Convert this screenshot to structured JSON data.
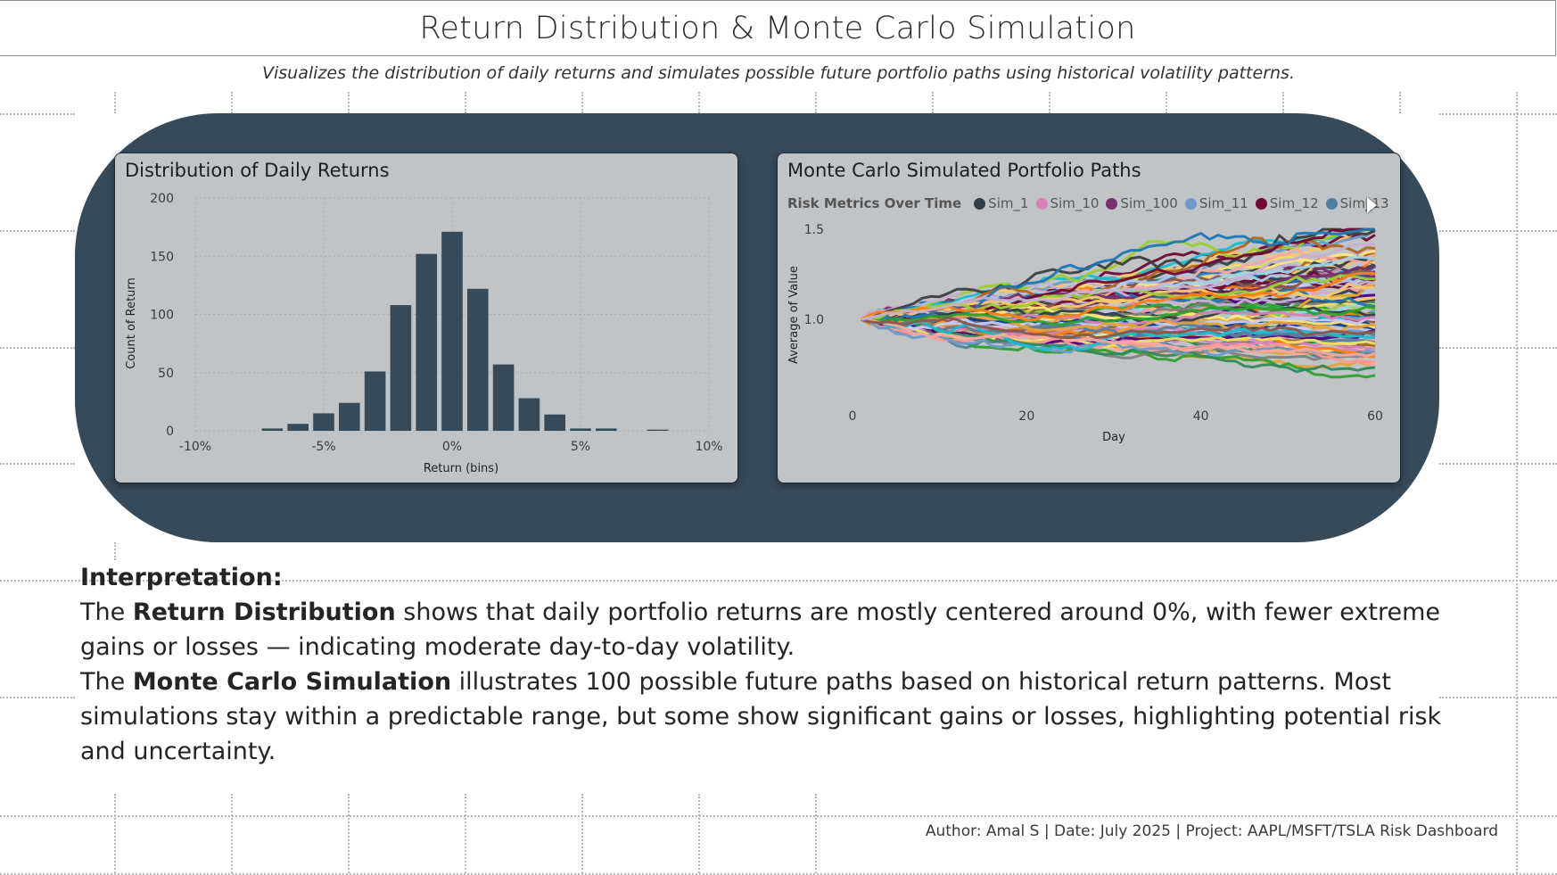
{
  "header": {
    "title": "Return Distribution & Monte Carlo Simulation",
    "subtitle": "Visualizes the distribution of daily returns and simulates possible future portfolio paths using historical volatility patterns."
  },
  "colors": {
    "panel_dark": "#374a5a",
    "card_bg": "#c0c4c6",
    "bar_color": "#374a5a"
  },
  "histogram_card": {
    "title": "Distribution of Daily Returns"
  },
  "montecarlo_card": {
    "title": "Monte Carlo Simulated Portfolio Paths",
    "legend_title": "Risk Metrics Over Time",
    "legend_items": [
      {
        "label": "Sim_1",
        "color": "#2f3f4c"
      },
      {
        "label": "Sim_10",
        "color": "#d782b4"
      },
      {
        "label": "Sim_100",
        "color": "#75306f"
      },
      {
        "label": "Sim_11",
        "color": "#6d9ac8"
      },
      {
        "label": "Sim_12",
        "color": "#6f0a35"
      },
      {
        "label": "Sim_13",
        "color": "#547e9e"
      }
    ],
    "legend_next_icon": "chevron-right-icon"
  },
  "chart_data": [
    {
      "type": "bar",
      "title": "Distribution of Daily Returns",
      "xlabel": "Return (bins)",
      "ylabel": "Count of Return",
      "ylim": [
        0,
        200
      ],
      "yticks": [
        0,
        50,
        100,
        150,
        200
      ],
      "xlim": [
        -0.1,
        0.1
      ],
      "xticks": [
        {
          "v": -0.1,
          "label": "-10%"
        },
        {
          "v": -0.05,
          "label": "-5%"
        },
        {
          "v": 0,
          "label": "0%"
        },
        {
          "v": 0.05,
          "label": "5%"
        },
        {
          "v": 0.1,
          "label": "10%"
        }
      ],
      "bin_width": 0.01,
      "grid": true,
      "bins": [
        {
          "x": -0.07,
          "value": 2
        },
        {
          "x": -0.06,
          "value": 6
        },
        {
          "x": -0.05,
          "value": 15
        },
        {
          "x": -0.04,
          "value": 24
        },
        {
          "x": -0.03,
          "value": 51
        },
        {
          "x": -0.02,
          "value": 108
        },
        {
          "x": -0.01,
          "value": 152
        },
        {
          "x": 0.0,
          "value": 171
        },
        {
          "x": 0.01,
          "value": 122
        },
        {
          "x": 0.02,
          "value": 57
        },
        {
          "x": 0.03,
          "value": 28
        },
        {
          "x": 0.04,
          "value": 14
        },
        {
          "x": 0.05,
          "value": 2
        },
        {
          "x": 0.06,
          "value": 2
        },
        {
          "x": 0.08,
          "value": 1
        }
      ]
    },
    {
      "type": "line",
      "title": "Monte Carlo Simulated Portfolio Paths",
      "xlabel": "Day",
      "ylabel": "Average of Value",
      "xlim": [
        0,
        60
      ],
      "xticks": [
        0,
        20,
        40,
        60
      ],
      "ylim": [
        0.6,
        1.55
      ],
      "yticks": [
        {
          "v": 1.0,
          "label": "1.0"
        },
        {
          "v": 1.5,
          "label": "1.5"
        }
      ],
      "series_count": 100,
      "start_value": 1.0,
      "end_range": [
        0.75,
        1.5
      ],
      "legend_position": "top",
      "series_palette": [
        "#2f3f4c",
        "#d782b4",
        "#75306f",
        "#6d9ac8",
        "#6f0a35",
        "#547e9e",
        "#e6a23c",
        "#f7c86a",
        "#1f77b4",
        "#17becf",
        "#2ca02c",
        "#9acd32",
        "#ff7f0e",
        "#fba7a0",
        "#8c564b",
        "#c5b0d5",
        "#7f7f7f",
        "#4b0082",
        "#0b3d91",
        "#f2e15c",
        "#ffe87a",
        "#9bd3e8",
        "#aec7e8",
        "#3f3f3f",
        "#ff9896",
        "#2e8b57",
        "#b5651d",
        "#c9c9ff"
      ]
    }
  ],
  "interpretation": {
    "heading": "Interpretation:",
    "p1_prefix": "The ",
    "p1_bold": "Return Distribution",
    "p1_rest": " shows that daily portfolio returns are mostly centered around 0%, with fewer extreme gains or losses — indicating moderate day-to-day volatility.",
    "p2_prefix": "The ",
    "p2_bold": "Monte Carlo Simulation",
    "p2_rest": " illustrates 100 possible future paths based on historical return patterns. Most simulations stay within a predictable range, but some show significant gains or losses, highlighting potential risk and uncertainty."
  },
  "footer": {
    "text": "Author: Amal S | Date: July 2025 | Project: AAPL/MSFT/TSLA Risk Dashboard"
  }
}
